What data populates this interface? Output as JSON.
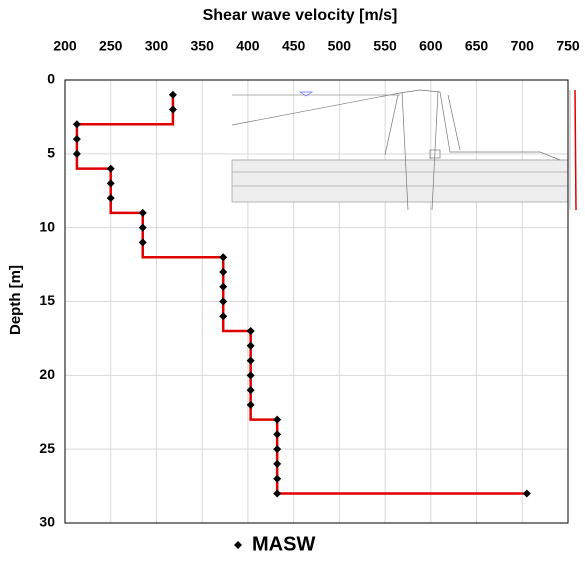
{
  "chart_data": {
    "type": "scatter",
    "title": "Shear wave velocity [m/s]",
    "y_label": "Depth [m]",
    "xlim": [
      200,
      750
    ],
    "xticks": [
      200,
      250,
      300,
      350,
      400,
      450,
      500,
      550,
      600,
      650,
      700,
      750
    ],
    "ylim": [
      0,
      30
    ],
    "yticks": [
      0,
      5,
      10,
      15,
      20,
      25,
      30
    ],
    "y_inverted": true,
    "x_axis_top": true,
    "grid": true,
    "legend": "bottom",
    "series": [
      {
        "name": "MASW",
        "color": "#000000",
        "marker": "diamond",
        "x": [
          318,
          318,
          213,
          213,
          213,
          250,
          250,
          250,
          285,
          285,
          285,
          373,
          373,
          373,
          373,
          373,
          403,
          403,
          403,
          403,
          403,
          403,
          432,
          432,
          432,
          432,
          432,
          432,
          705
        ],
        "y": [
          1,
          2,
          3,
          4,
          5,
          6,
          7,
          8,
          9,
          10,
          11,
          12,
          13,
          14,
          15,
          16,
          17,
          18,
          19,
          20,
          21,
          22,
          23,
          24,
          25,
          26,
          27,
          28,
          28
        ]
      },
      {
        "type": "line",
        "color": "#e00000",
        "x": [
          318,
          318,
          213,
          213,
          250,
          250,
          285,
          285,
          373,
          373,
          403,
          403,
          432,
          432,
          705
        ],
        "y": [
          1,
          3,
          3,
          6,
          6,
          9,
          9,
          12,
          12,
          17,
          17,
          23,
          23,
          28,
          28
        ]
      }
    ]
  }
}
